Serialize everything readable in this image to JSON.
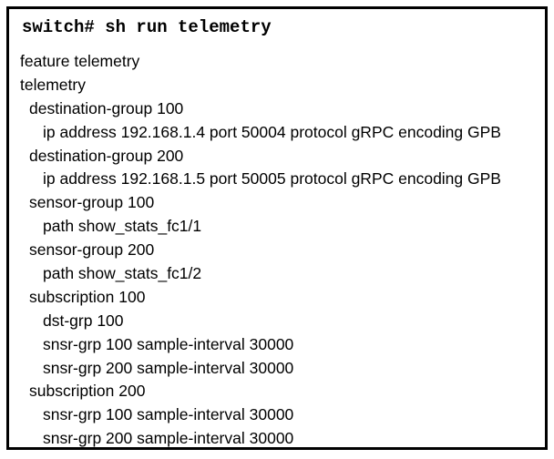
{
  "terminal": {
    "command": "switch# sh run telemetry",
    "lines": [
      {
        "text": "feature telemetry",
        "indent": 0
      },
      {
        "text": "telemetry",
        "indent": 0
      },
      {
        "text": "destination-group 100",
        "indent": 1
      },
      {
        "text": "ip address 192.168.1.4 port 50004 protocol gRPC encoding GPB",
        "indent": 2
      },
      {
        "text": "destination-group 200",
        "indent": 1
      },
      {
        "text": "ip address 192.168.1.5 port 50005 protocol gRPC encoding GPB",
        "indent": 2
      },
      {
        "text": "sensor-group 100",
        "indent": 1
      },
      {
        "text": "path show_stats_fc1/1",
        "indent": 2
      },
      {
        "text": "sensor-group 200",
        "indent": 1
      },
      {
        "text": "path show_stats_fc1/2",
        "indent": 2
      },
      {
        "text": "subscription 100",
        "indent": 1
      },
      {
        "text": "dst-grp 100",
        "indent": 2
      },
      {
        "text": "snsr-grp 100 sample-interval 30000",
        "indent": 2
      },
      {
        "text": "snsr-grp 200 sample-interval 30000",
        "indent": 2
      },
      {
        "text": "subscription 200",
        "indent": 1
      },
      {
        "text": "snsr-grp 100 sample-interval 30000",
        "indent": 2
      },
      {
        "text": "snsr-grp 200 sample-interval 30000",
        "indent": 2
      }
    ]
  }
}
